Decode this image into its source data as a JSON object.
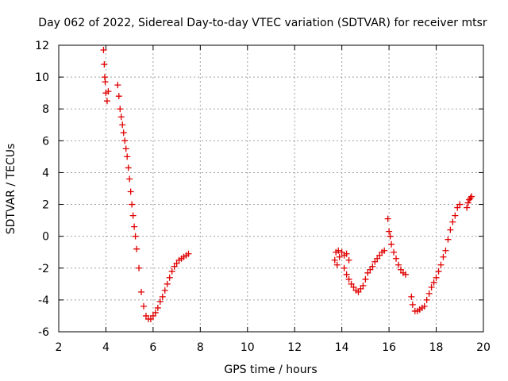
{
  "chart_data": {
    "type": "scatter",
    "title": "Day 062 of 2022, Sidereal Day-to-day VTEC variation (SDTVAR) for receiver mtsr",
    "xlabel": "GPS time / hours",
    "ylabel": "SDTVAR / TECUs",
    "xlim": [
      2,
      20
    ],
    "ylim": [
      -6,
      12
    ],
    "xticks": [
      2,
      4,
      6,
      8,
      10,
      12,
      14,
      16,
      18,
      20
    ],
    "yticks": [
      -6,
      -4,
      -2,
      0,
      2,
      4,
      6,
      8,
      10,
      12
    ],
    "grid": true,
    "marker": "plus",
    "marker_color": "#e00000",
    "series": [
      {
        "name": "SDTVAR",
        "x": [
          3.9,
          3.93,
          3.95,
          3.97,
          4.0,
          4.05,
          4.1,
          4.5,
          4.55,
          4.6,
          4.65,
          4.7,
          4.75,
          4.8,
          4.85,
          4.9,
          4.95,
          5.0,
          5.05,
          5.1,
          5.15,
          5.2,
          5.25,
          5.3,
          5.4,
          5.5,
          5.6,
          5.7,
          5.8,
          5.9,
          6.0,
          6.1,
          6.2,
          6.3,
          6.4,
          6.5,
          6.6,
          6.7,
          6.8,
          6.9,
          7.0,
          7.1,
          7.2,
          7.3,
          7.4,
          7.5,
          13.7,
          13.75,
          13.8,
          13.85,
          13.9,
          14.0,
          14.1,
          14.2,
          14.3,
          14.1,
          14.2,
          14.3,
          14.4,
          14.5,
          14.6,
          14.7,
          14.8,
          14.9,
          15.0,
          15.1,
          15.2,
          15.3,
          15.4,
          15.5,
          15.6,
          15.7,
          15.8,
          15.95,
          16.0,
          16.05,
          16.1,
          16.2,
          16.3,
          16.4,
          16.5,
          16.6,
          16.7,
          16.95,
          17.0,
          17.1,
          17.2,
          17.3,
          17.4,
          17.5,
          17.6,
          17.7,
          17.8,
          17.9,
          18.0,
          18.1,
          18.2,
          18.3,
          18.4,
          18.5,
          18.6,
          18.7,
          18.8,
          18.9,
          19.0,
          19.3,
          19.35,
          19.4,
          19.45,
          19.5
        ],
        "y": [
          11.7,
          10.8,
          10.0,
          9.7,
          9.0,
          8.5,
          9.1,
          9.5,
          8.8,
          8.0,
          7.5,
          7.0,
          6.5,
          6.0,
          5.5,
          5.0,
          4.3,
          3.6,
          2.8,
          2.0,
          1.3,
          0.6,
          0.0,
          -0.8,
          -2.0,
          -3.5,
          -4.4,
          -5.0,
          -5.2,
          -5.2,
          -5.0,
          -4.8,
          -4.5,
          -4.1,
          -3.8,
          -3.4,
          -3.0,
          -2.6,
          -2.2,
          -1.9,
          -1.7,
          -1.5,
          -1.4,
          -1.3,
          -1.2,
          -1.1,
          -1.5,
          -1.0,
          -1.8,
          -0.9,
          -1.3,
          -1.0,
          -1.2,
          -1.1,
          -1.5,
          -2.0,
          -2.4,
          -2.7,
          -3.0,
          -3.2,
          -3.4,
          -3.5,
          -3.3,
          -3.1,
          -2.7,
          -2.3,
          -2.1,
          -1.9,
          -1.6,
          -1.4,
          -1.2,
          -1.0,
          -0.9,
          1.1,
          0.3,
          0.0,
          -0.5,
          -1.0,
          -1.4,
          -1.8,
          -2.1,
          -2.3,
          -2.4,
          -3.8,
          -4.3,
          -4.7,
          -4.7,
          -4.6,
          -4.5,
          -4.4,
          -4.0,
          -3.6,
          -3.2,
          -2.9,
          -2.6,
          -2.2,
          -1.8,
          -1.3,
          -0.9,
          -0.2,
          0.4,
          0.9,
          1.3,
          1.8,
          2.0,
          1.8,
          2.1,
          2.3,
          2.4,
          2.5
        ]
      }
    ]
  }
}
